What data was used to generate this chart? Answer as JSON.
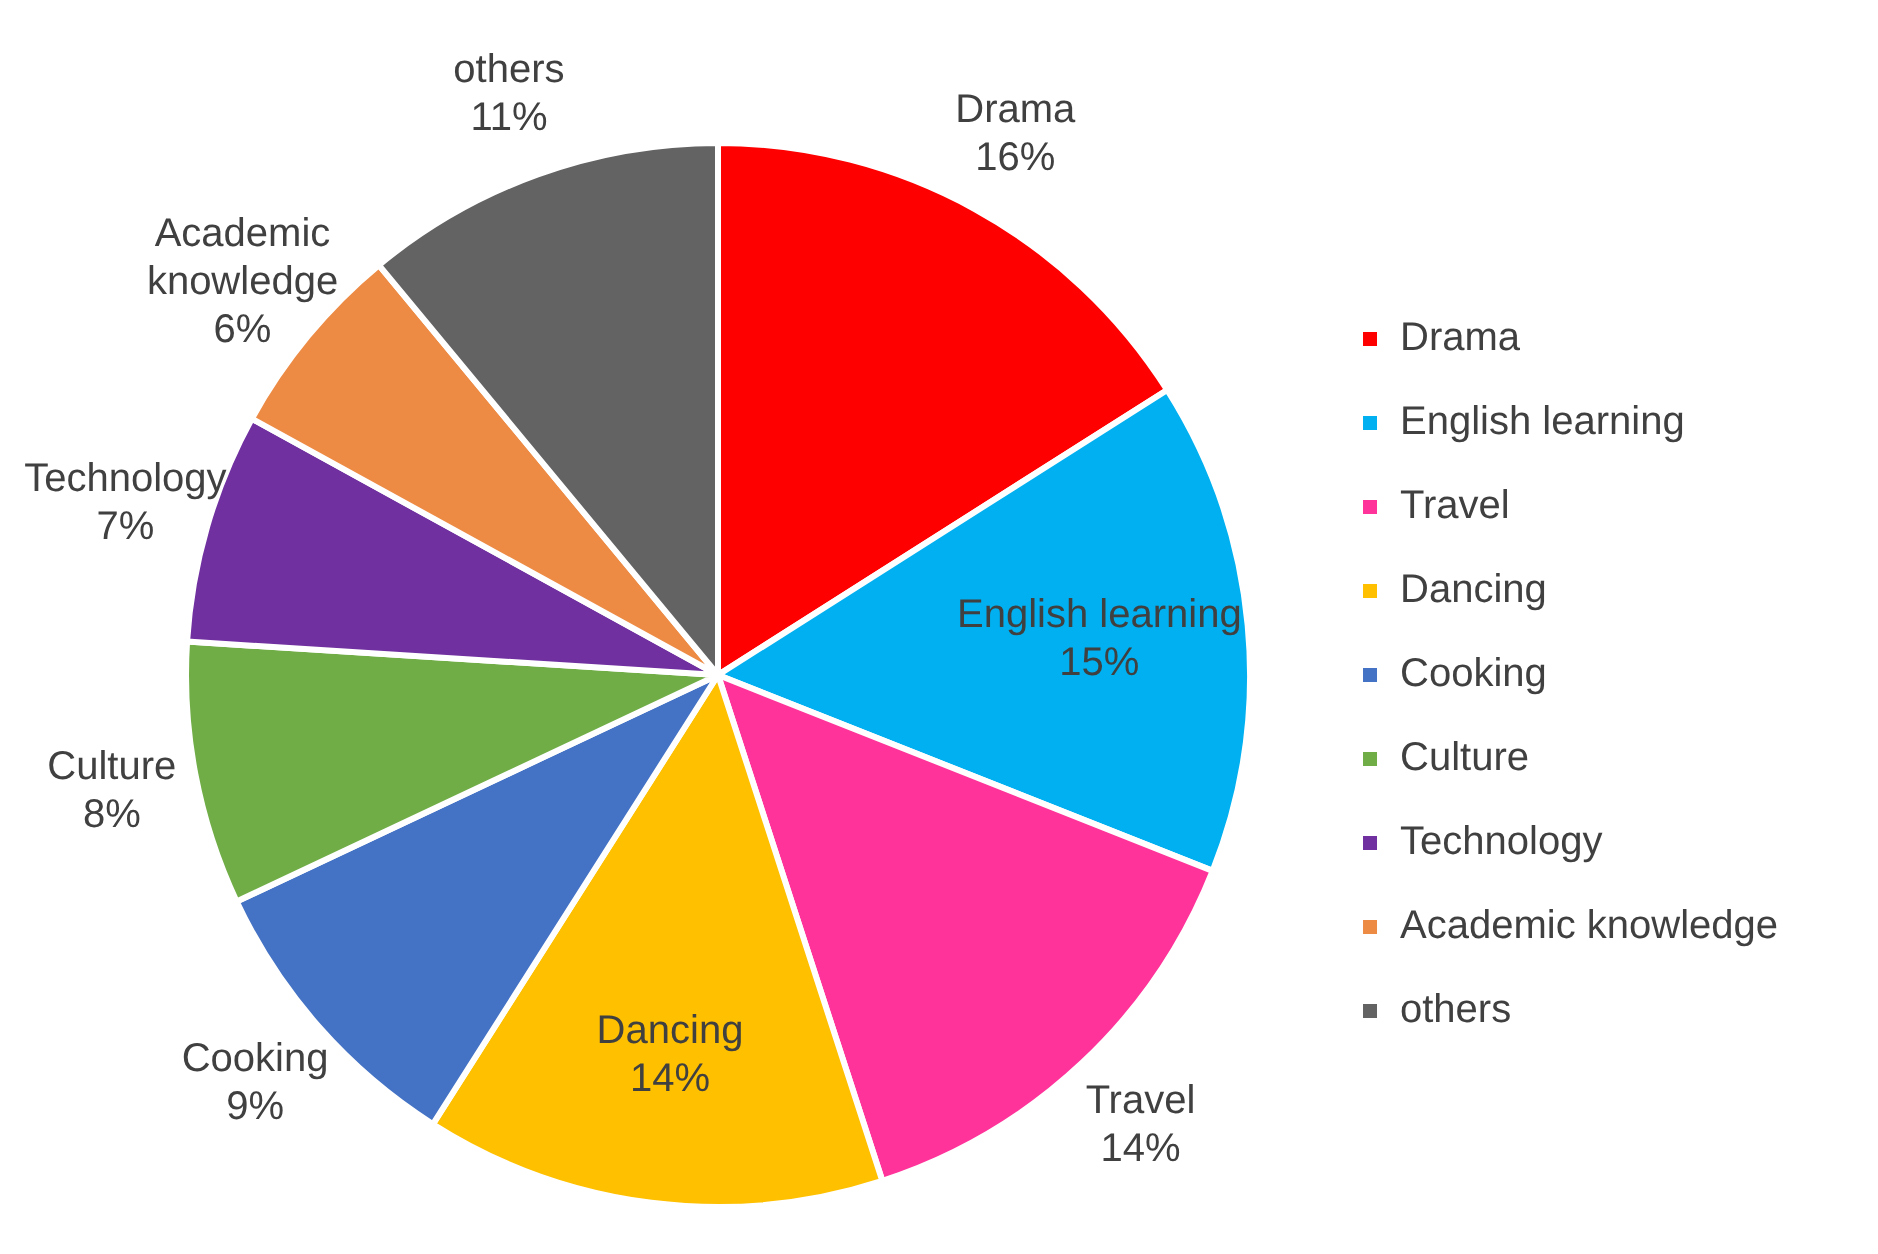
{
  "chart_data": {
    "type": "pie",
    "categories": [
      "Drama",
      "English learning",
      "Travel",
      "Dancing",
      "Cooking",
      "Culture",
      "Technology",
      "Academic knowledge",
      "others"
    ],
    "values": [
      16,
      15,
      14,
      14,
      9,
      8,
      7,
      6,
      11
    ],
    "colors": [
      "#ff0000",
      "#00b0f0",
      "#ff3399",
      "#ffc000",
      "#4472c4",
      "#70ad47",
      "#7030a0",
      "#ed8b45",
      "#636363"
    ],
    "value_labels": [
      "16%",
      "15%",
      "14%",
      "14%",
      "9%",
      "8%",
      "7%",
      "6%",
      "11%"
    ],
    "legend": "right"
  }
}
